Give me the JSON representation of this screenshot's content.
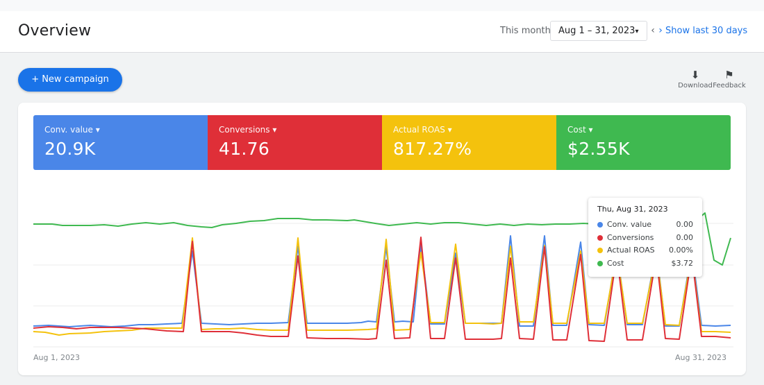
{
  "header": {
    "title": "Overview",
    "range_label": "This month",
    "date_range": "Aug 1 – 31, 2023",
    "show_last": "Show last 30 days"
  },
  "toolbar": {
    "new_campaign": "+ New campaign",
    "download": "Download",
    "feedback": "Feedback"
  },
  "metrics": [
    {
      "label": "Conv. value",
      "value": "20.9K",
      "color": "#4a86e8"
    },
    {
      "label": "Conversions",
      "value": "41.76",
      "color": "#df2f38"
    },
    {
      "label": "Actual ROAS",
      "value": "817.27%",
      "color": "#f4c20d"
    },
    {
      "label": "Cost",
      "value": "$2.55K",
      "color": "#3fb950"
    }
  ],
  "chart": {
    "x_start_label": "Aug 1, 2023",
    "x_end_label": "Aug 31, 2023",
    "gridlines": true
  },
  "tooltip": {
    "title": "Thu, Aug 31, 2023",
    "rows": [
      {
        "name": "Conv. value",
        "value": "0.00",
        "color": "#4a86e8"
      },
      {
        "name": "Conversions",
        "value": "0.00",
        "color": "#df2f38"
      },
      {
        "name": "Actual ROAS",
        "value": "0.00%",
        "color": "#f4c20d"
      },
      {
        "name": "Cost",
        "value": "$3.72",
        "color": "#3fb950"
      }
    ]
  }
}
